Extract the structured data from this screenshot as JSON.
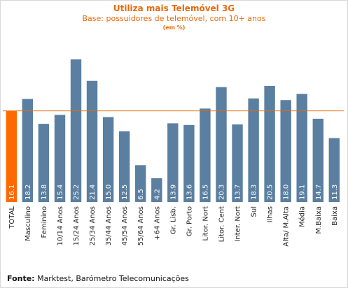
{
  "chart_data": {
    "type": "bar",
    "title": "Utiliza mais Telemóvel 3G",
    "subtitle": "Base: possuidores de telemóvel, com 10+ anos",
    "unit_note": "(em %)",
    "categories": [
      "TOTAL",
      "Masculino",
      "Feminino",
      "10/14 Anos",
      "15/24 Anos",
      "25/34 Anos",
      "35/44 Anos",
      "45/54 Anos",
      "55/64 Anos",
      "+64 Anos",
      "Gr. Lisb.",
      "Gr. Porto",
      "Litor. Nort",
      "Litor. Cent",
      "Inter. Nort",
      "Sul",
      "Ilhas",
      "Alta/ M.Alta",
      "Média",
      "M.Baixa",
      "Baixa"
    ],
    "values": [
      16.1,
      18.2,
      13.8,
      15.4,
      25.2,
      21.4,
      15.0,
      12.5,
      6.5,
      4.2,
      13.9,
      13.6,
      16.5,
      20.3,
      13.7,
      18.3,
      20.5,
      18.0,
      19.1,
      14.7,
      11.3
    ],
    "value_labels": [
      "16.1",
      "18.2",
      "13.8",
      "15.4",
      "25.2",
      "21.4",
      "15.0",
      "12.5",
      "6.5",
      "4.2",
      "13.9",
      "13.6",
      "16.5",
      "20.3",
      "13.7",
      "18.3",
      "20.5",
      "18.0",
      "19.1",
      "14.7",
      "11.3"
    ],
    "reference_line": 16.1,
    "colors": {
      "highlight": "#ff6a00",
      "bar": "#5b7fa0",
      "line": "#e8690c",
      "label": "#ffffff"
    }
  },
  "footer": {
    "source_label": "Fonte:",
    "source_text": " Marktest, Barómetro Telecomunicações"
  }
}
